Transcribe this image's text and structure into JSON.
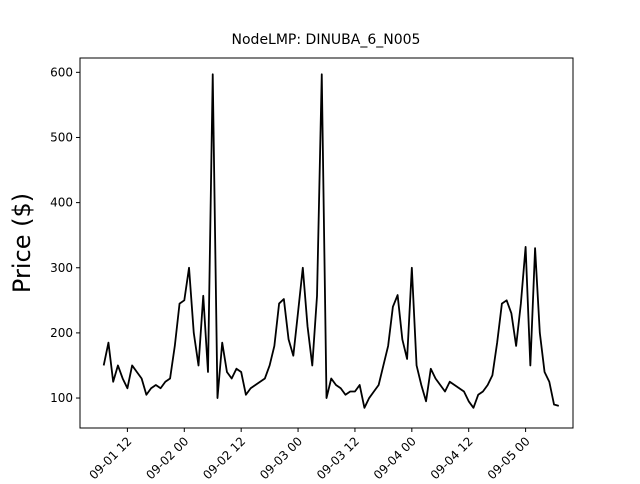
{
  "chart_data": {
    "type": "line",
    "title": "NodeLMP: DINUBA_6_N005",
    "ylabel": "Price ($)",
    "color": "#000000",
    "x": [
      "09-01 07",
      "09-01 08",
      "09-01 09",
      "09-01 10",
      "09-01 11",
      "09-01 12",
      "09-01 13",
      "09-01 14",
      "09-01 15",
      "09-01 16",
      "09-01 17",
      "09-01 18",
      "09-01 19",
      "09-01 20",
      "09-01 21",
      "09-01 22",
      "09-01 23",
      "09-02 00",
      "09-02 01",
      "09-02 02",
      "09-02 03",
      "09-02 04",
      "09-02 05",
      "09-02 06",
      "09-02 07",
      "09-02 08",
      "09-02 09",
      "09-02 10",
      "09-02 11",
      "09-02 12",
      "09-02 13",
      "09-02 14",
      "09-02 15",
      "09-02 16",
      "09-02 17",
      "09-02 18",
      "09-02 19",
      "09-02 20",
      "09-02 21",
      "09-02 22",
      "09-02 23",
      "09-03 00",
      "09-03 01",
      "09-03 02",
      "09-03 03",
      "09-03 04",
      "09-03 05",
      "09-03 06",
      "09-03 07",
      "09-03 08",
      "09-03 09",
      "09-03 10",
      "09-03 11",
      "09-03 12",
      "09-03 13",
      "09-03 14",
      "09-03 15",
      "09-03 16",
      "09-03 17",
      "09-03 18",
      "09-03 19",
      "09-03 20",
      "09-03 21",
      "09-03 22",
      "09-03 23",
      "09-04 00",
      "09-04 01",
      "09-04 02",
      "09-04 03",
      "09-04 04",
      "09-04 05",
      "09-04 06",
      "09-04 07",
      "09-04 08",
      "09-04 09",
      "09-04 10",
      "09-04 11",
      "09-04 12",
      "09-04 13",
      "09-04 14",
      "09-04 15",
      "09-04 16",
      "09-04 17",
      "09-04 18",
      "09-04 19",
      "09-04 20",
      "09-04 21",
      "09-04 22",
      "09-04 23",
      "09-05 00",
      "09-05 01",
      "09-05 02",
      "09-05 03",
      "09-05 04",
      "09-05 05",
      "09-05 06",
      "09-05 07"
    ],
    "values": [
      150,
      185,
      125,
      150,
      130,
      115,
      150,
      140,
      130,
      105,
      115,
      120,
      115,
      125,
      130,
      180,
      245,
      250,
      300,
      200,
      150,
      257,
      140,
      597,
      100,
      185,
      140,
      130,
      145,
      140,
      105,
      115,
      120,
      125,
      130,
      150,
      180,
      245,
      252,
      190,
      165,
      232,
      300,
      210,
      150,
      257,
      597,
      100,
      130,
      120,
      115,
      105,
      110,
      110,
      120,
      85,
      100,
      110,
      120,
      150,
      180,
      240,
      258,
      190,
      160,
      300,
      150,
      120,
      95,
      145,
      130,
      120,
      110,
      125,
      120,
      115,
      110,
      95,
      85,
      105,
      110,
      120,
      135,
      185,
      245,
      250,
      230,
      180,
      245,
      332,
      150,
      330,
      200,
      140,
      125,
      90,
      88
    ],
    "xlim": [
      "09-01 02",
      "09-05 10"
    ],
    "xticks": [
      "09-01 12",
      "09-02 00",
      "09-02 12",
      "09-03 00",
      "09-03 12",
      "09-04 00",
      "09-04 12",
      "09-05 00"
    ],
    "ylim": [
      54,
      622
    ],
    "yticks": [
      100,
      200,
      300,
      400,
      500,
      600
    ]
  }
}
